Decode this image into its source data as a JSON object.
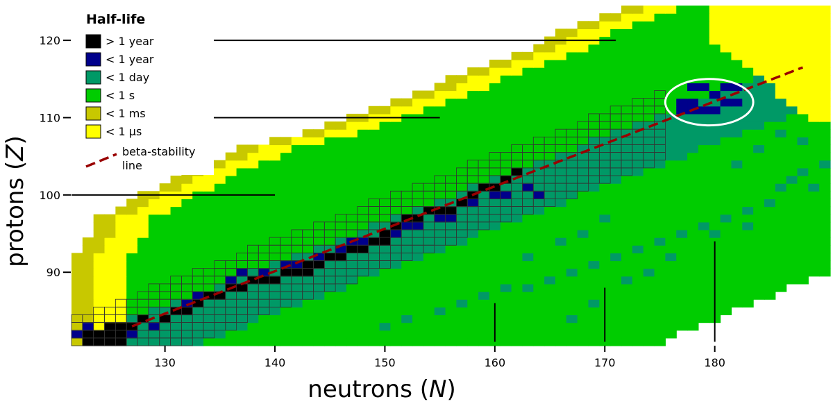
{
  "chart_data": {
    "type": "heatmap",
    "title": "",
    "xlabel_prefix": "neutrons  (",
    "xlabel_var": "N",
    "xlabel_suffix": ")",
    "ylabel_prefix": "protons  (",
    "ylabel_var": "Z",
    "ylabel_suffix": ")",
    "xlim": [
      121.5,
      190.5
    ],
    "ylim": [
      80.5,
      124.5
    ],
    "x_ticks": [
      130,
      140,
      150,
      160,
      170,
      180
    ],
    "x_tick_labels": [
      "130",
      "140",
      "150",
      "160",
      "170",
      "180"
    ],
    "y_ticks": [
      90,
      100,
      110,
      120
    ],
    "y_tick_labels": [
      "90",
      "100",
      "110",
      "120"
    ],
    "grid": false,
    "legend": {
      "title": "Half-life",
      "placement": "top-left",
      "entries": [
        {
          "label": "> 1 year",
          "color": "#000000"
        },
        {
          "label": "< 1 year",
          "color": "#00008b"
        },
        {
          "label": "< 1 day",
          "color": "#009966"
        },
        {
          "label": "< 1 s",
          "color": "#00cc00"
        },
        {
          "label": "< 1 ms",
          "color": "#c8c800"
        },
        {
          "label": "< 1 µs",
          "color": "#ffff00"
        }
      ],
      "line_entry_lines": [
        "beta-stability",
        "line"
      ]
    },
    "beta_stability_line": {
      "color": "#990000",
      "from": [
        127,
        83
      ],
      "to": [
        188,
        116.5
      ]
    },
    "island_of_stability": {
      "center": [
        179.5,
        112
      ],
      "radius_n": 4,
      "radius_z": 3,
      "color": "#ffffff"
    },
    "guide_lines": [
      {
        "orientation": "horizontal",
        "z": 120,
        "n_from": 132,
        "n_to": 171
      },
      {
        "orientation": "horizontal",
        "z": 110,
        "n_from": 132,
        "n_to": 155
      },
      {
        "orientation": "horizontal",
        "z": 100,
        "n_from": 121.5,
        "n_to": 140
      },
      {
        "orientation": "vertical",
        "n": 160,
        "z_from": 81,
        "z_to": 86
      },
      {
        "orientation": "vertical",
        "n": 170,
        "z_from": 81,
        "z_to": 88
      },
      {
        "orientation": "vertical",
        "n": 180,
        "z_from": 81,
        "z_to": 94
      }
    ],
    "region_bands": [
      {
        "category": "< 1 ms",
        "color": "#c8c800",
        "offsets": [
          0,
          1
        ]
      },
      {
        "category": "< 1 µs",
        "color": "#ffff00",
        "offsets": [
          2,
          3,
          4
        ]
      }
    ],
    "boundary_points": [
      [
        92,
        122
      ],
      [
        97,
        124
      ],
      [
        100,
        128
      ],
      [
        103,
        132
      ],
      [
        106,
        137
      ],
      [
        109,
        145
      ],
      [
        112,
        151
      ],
      [
        115,
        156
      ],
      [
        118,
        162
      ],
      [
        121,
        166
      ],
      [
        124,
        172
      ],
      [
        125,
        174
      ]
    ],
    "regions": {
      "day": {
        "color": "#009966",
        "upper_offset": 1,
        "lower_offset": -5.5
      },
      "second": {
        "color": "#00cc00",
        "upper_offset": -5.5,
        "lower_offset": -40
      }
    },
    "observed_cell_outline_color": "#333333",
    "observed_band": {
      "above": 3,
      "below": 4,
      "n_max": 175
    },
    "stable_cells": [
      [
        123,
        81
      ],
      [
        124,
        81
      ],
      [
        125,
        81
      ],
      [
        126,
        81
      ],
      [
        123,
        82
      ],
      [
        124,
        82
      ],
      [
        125,
        82
      ],
      [
        126,
        82
      ],
      [
        125,
        83
      ],
      [
        126,
        83
      ],
      [
        127,
        83
      ],
      [
        128,
        84
      ],
      [
        130,
        84
      ],
      [
        131,
        85
      ],
      [
        132,
        85
      ],
      [
        133,
        86
      ],
      [
        134,
        87
      ],
      [
        135,
        87
      ],
      [
        136,
        88
      ],
      [
        137,
        88
      ],
      [
        138,
        89
      ],
      [
        139,
        89
      ],
      [
        140,
        89
      ],
      [
        141,
        90
      ],
      [
        142,
        90
      ],
      [
        143,
        90
      ],
      [
        143,
        91
      ],
      [
        144,
        91
      ],
      [
        145,
        92
      ],
      [
        146,
        92
      ],
      [
        147,
        93
      ],
      [
        148,
        93
      ],
      [
        149,
        94
      ],
      [
        150,
        94
      ],
      [
        150,
        95
      ],
      [
        151,
        96
      ],
      [
        152,
        97
      ],
      [
        153,
        97
      ],
      [
        154,
        98
      ],
      [
        155,
        98
      ],
      [
        156,
        98
      ],
      [
        157,
        99
      ],
      [
        158,
        100
      ],
      [
        159,
        101
      ],
      [
        160,
        101
      ],
      [
        161,
        102
      ],
      [
        162,
        103
      ]
    ],
    "year_cells": [
      [
        122,
        82
      ],
      [
        123,
        83
      ],
      [
        127,
        82
      ],
      [
        129,
        83
      ],
      [
        132,
        86
      ],
      [
        133,
        87
      ],
      [
        136,
        89
      ],
      [
        137,
        90
      ],
      [
        139,
        90
      ],
      [
        141,
        91
      ],
      [
        142,
        91
      ],
      [
        144,
        92
      ],
      [
        146,
        93
      ],
      [
        147,
        94
      ],
      [
        148,
        94
      ],
      [
        151,
        95
      ],
      [
        152,
        96
      ],
      [
        153,
        96
      ],
      [
        155,
        97
      ],
      [
        156,
        97
      ],
      [
        158,
        99
      ],
      [
        160,
        100
      ],
      [
        161,
        100
      ],
      [
        163,
        101
      ],
      [
        164,
        100
      ],
      [
        177,
        112
      ],
      [
        178,
        111
      ],
      [
        178,
        112
      ],
      [
        179,
        111
      ],
      [
        180,
        113
      ],
      [
        181,
        112
      ],
      [
        182,
        112
      ],
      [
        182,
        114
      ],
      [
        179,
        114
      ],
      [
        178,
        114
      ],
      [
        177,
        111
      ],
      [
        180,
        111
      ],
      [
        181,
        114
      ]
    ],
    "scatter_day_cells": [
      [
        157,
        86
      ],
      [
        159,
        87
      ],
      [
        161,
        88
      ],
      [
        163,
        88
      ],
      [
        165,
        89
      ],
      [
        167,
        90
      ],
      [
        169,
        91
      ],
      [
        171,
        92
      ],
      [
        173,
        93
      ],
      [
        175,
        94
      ],
      [
        177,
        95
      ],
      [
        179,
        96
      ],
      [
        181,
        97
      ],
      [
        183,
        98
      ],
      [
        185,
        99
      ],
      [
        186,
        101
      ],
      [
        187,
        102
      ],
      [
        188,
        103
      ],
      [
        190,
        104
      ],
      [
        155,
        85
      ],
      [
        152,
        84
      ],
      [
        150,
        83
      ],
      [
        163,
        92
      ],
      [
        166,
        94
      ],
      [
        168,
        95
      ],
      [
        170,
        97
      ],
      [
        176,
        92
      ],
      [
        174,
        90
      ],
      [
        172,
        89
      ],
      [
        169,
        86
      ],
      [
        167,
        84
      ],
      [
        182,
        104
      ],
      [
        184,
        106
      ],
      [
        186,
        108
      ],
      [
        188,
        107
      ],
      [
        180,
        95
      ],
      [
        183,
        96
      ],
      [
        189,
        101
      ]
    ],
    "scatter_second_cells": [
      [
        165,
        95
      ],
      [
        169,
        96
      ],
      [
        172,
        98
      ],
      [
        175,
        100
      ],
      [
        177,
        101
      ],
      [
        180,
        102
      ],
      [
        168,
        91
      ],
      [
        164,
        90
      ],
      [
        161,
        91
      ],
      [
        175,
        97
      ],
      [
        178,
        99
      ],
      [
        182,
        101
      ],
      [
        163,
        95
      ],
      [
        171,
        99
      ]
    ]
  }
}
